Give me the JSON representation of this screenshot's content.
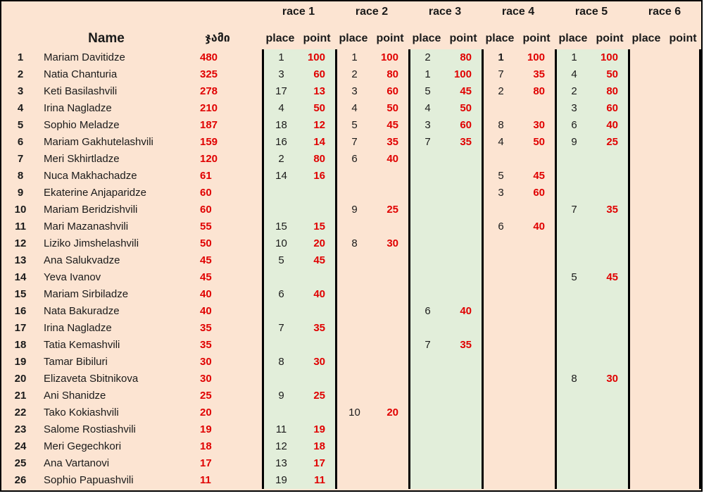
{
  "table": {
    "name_header": "Name",
    "total_header": "ჯამი",
    "place_header": "place",
    "point_header": "point",
    "race_headers": [
      "race 1",
      "race 2",
      "race 3",
      "race 4",
      "race 5",
      "race 6"
    ],
    "colors": {
      "background_peach": "#fce4d2",
      "race_band_green": "#e2eeda",
      "value_red": "#e00000",
      "grid_black": "#000000"
    },
    "rows": [
      {
        "rank": "1",
        "name": "Mariam Davitidze",
        "total": "480",
        "races": [
          {
            "place": "1",
            "point": "100"
          },
          {
            "place": "1",
            "point": "100"
          },
          {
            "place": "2",
            "point": "80"
          },
          {
            "place": "1",
            "point": "100",
            "bold_place": true
          },
          {
            "place": "1",
            "point": "100"
          },
          {}
        ]
      },
      {
        "rank": "2",
        "name": "Natia Chanturia",
        "total": "325",
        "races": [
          {
            "place": "3",
            "point": "60"
          },
          {
            "place": "2",
            "point": "80"
          },
          {
            "place": "1",
            "point": "100"
          },
          {
            "place": "7",
            "point": "35"
          },
          {
            "place": "4",
            "point": "50"
          },
          {}
        ]
      },
      {
        "rank": "3",
        "name": "Keti Basilashvili",
        "total": "278",
        "races": [
          {
            "place": "17",
            "point": "13"
          },
          {
            "place": "3",
            "point": "60"
          },
          {
            "place": "5",
            "point": "45"
          },
          {
            "place": "2",
            "point": "80"
          },
          {
            "place": "2",
            "point": "80"
          },
          {}
        ]
      },
      {
        "rank": "4",
        "name": "Irina Nagladze",
        "total": "210",
        "races": [
          {
            "place": "4",
            "point": "50"
          },
          {
            "place": "4",
            "point": "50"
          },
          {
            "place": "4",
            "point": "50"
          },
          {},
          {
            "place": "3",
            "point": "60"
          },
          {}
        ]
      },
      {
        "rank": "5",
        "name": "Sophio Meladze",
        "total": "187",
        "races": [
          {
            "place": "18",
            "point": "12"
          },
          {
            "place": "5",
            "point": "45"
          },
          {
            "place": "3",
            "point": "60"
          },
          {
            "place": "8",
            "point": "30"
          },
          {
            "place": "6",
            "point": "40"
          },
          {}
        ]
      },
      {
        "rank": "6",
        "name": "Mariam Gakhutelashvili",
        "total": "159",
        "races": [
          {
            "place": "16",
            "point": "14"
          },
          {
            "place": "7",
            "point": "35"
          },
          {
            "place": "7",
            "point": "35"
          },
          {
            "place": "4",
            "point": "50"
          },
          {
            "place": "9",
            "point": "25"
          },
          {}
        ]
      },
      {
        "rank": "7",
        "name": "Meri Skhirtladze",
        "total": "120",
        "races": [
          {
            "place": "2",
            "point": "80"
          },
          {
            "place": "6",
            "point": "40"
          },
          {},
          {},
          {},
          {}
        ]
      },
      {
        "rank": "8",
        "name": "Nuca Makhachadze",
        "total": "61",
        "races": [
          {
            "place": "14",
            "point": "16"
          },
          {},
          {},
          {
            "place": "5",
            "point": "45"
          },
          {},
          {}
        ]
      },
      {
        "rank": "9",
        "name": "Ekaterine Anjaparidze",
        "total": "60",
        "races": [
          {},
          {},
          {},
          {
            "place": "3",
            "point": "60"
          },
          {},
          {}
        ]
      },
      {
        "rank": "10",
        "name": "Mariam Beridzishvili",
        "total": "60",
        "races": [
          {},
          {
            "place": "9",
            "point": "25"
          },
          {},
          {},
          {
            "place": "7",
            "point": "35"
          },
          {}
        ]
      },
      {
        "rank": "11",
        "name": "Mari Mazanashvili",
        "total": "55",
        "races": [
          {
            "place": "15",
            "point": "15"
          },
          {},
          {},
          {
            "place": "6",
            "point": "40"
          },
          {},
          {}
        ]
      },
      {
        "rank": "12",
        "name": "Liziko Jimshelashvili",
        "total": "50",
        "races": [
          {
            "place": "10",
            "point": "20"
          },
          {
            "place": "8",
            "point": "30"
          },
          {},
          {},
          {},
          {}
        ]
      },
      {
        "rank": "13",
        "name": "Ana Salukvadze",
        "total": "45",
        "races": [
          {
            "place": "5",
            "point": "45"
          },
          {},
          {},
          {},
          {},
          {}
        ]
      },
      {
        "rank": "14",
        "name": "Yeva Ivanov",
        "total": "45",
        "races": [
          {},
          {},
          {},
          {},
          {
            "place": "5",
            "point": "45"
          },
          {}
        ]
      },
      {
        "rank": "15",
        "name": "Mariam Sirbiladze",
        "total": "40",
        "races": [
          {
            "place": "6",
            "point": "40"
          },
          {},
          {},
          {},
          {},
          {}
        ]
      },
      {
        "rank": "16",
        "name": "Nata Bakuradze",
        "total": "40",
        "races": [
          {},
          {},
          {
            "place": "6",
            "point": "40"
          },
          {},
          {},
          {}
        ]
      },
      {
        "rank": "17",
        "name": "Irina Nagladze",
        "total": "35",
        "races": [
          {
            "place": "7",
            "point": "35"
          },
          {},
          {},
          {},
          {},
          {}
        ]
      },
      {
        "rank": "18",
        "name": "Tatia Kemashvili",
        "total": "35",
        "races": [
          {},
          {},
          {
            "place": "7",
            "point": "35"
          },
          {},
          {},
          {}
        ]
      },
      {
        "rank": "19",
        "name": "Tamar Bibiluri",
        "total": "30",
        "races": [
          {
            "place": "8",
            "point": "30"
          },
          {},
          {},
          {},
          {},
          {}
        ]
      },
      {
        "rank": "20",
        "name": "Elizaveta Sbitnikova",
        "total": "30",
        "races": [
          {},
          {},
          {},
          {},
          {
            "place": "8",
            "point": "30"
          },
          {}
        ]
      },
      {
        "rank": "21",
        "name": "Ani Shanidze",
        "total": "25",
        "races": [
          {
            "place": "9",
            "point": "25"
          },
          {},
          {},
          {},
          {},
          {}
        ]
      },
      {
        "rank": "22",
        "name": "Tako Kokiashvili",
        "total": "20",
        "races": [
          {},
          {
            "place": "10",
            "point": "20"
          },
          {},
          {},
          {},
          {}
        ]
      },
      {
        "rank": "23",
        "name": "Salome Rostiashvili",
        "total": "19",
        "races": [
          {
            "place": "11",
            "point": "19"
          },
          {},
          {},
          {},
          {},
          {}
        ]
      },
      {
        "rank": "24",
        "name": "Meri Gegechkori",
        "total": "18",
        "races": [
          {
            "place": "12",
            "point": "18"
          },
          {},
          {},
          {},
          {},
          {}
        ]
      },
      {
        "rank": "25",
        "name": "Ana Vartanovi",
        "total": "17",
        "races": [
          {
            "place": "13",
            "point": "17"
          },
          {},
          {},
          {},
          {},
          {}
        ]
      },
      {
        "rank": "26",
        "name": "Sophio Papuashvili",
        "total": "11",
        "races": [
          {
            "place": "19",
            "point": "11"
          },
          {},
          {},
          {},
          {},
          {}
        ]
      }
    ]
  }
}
